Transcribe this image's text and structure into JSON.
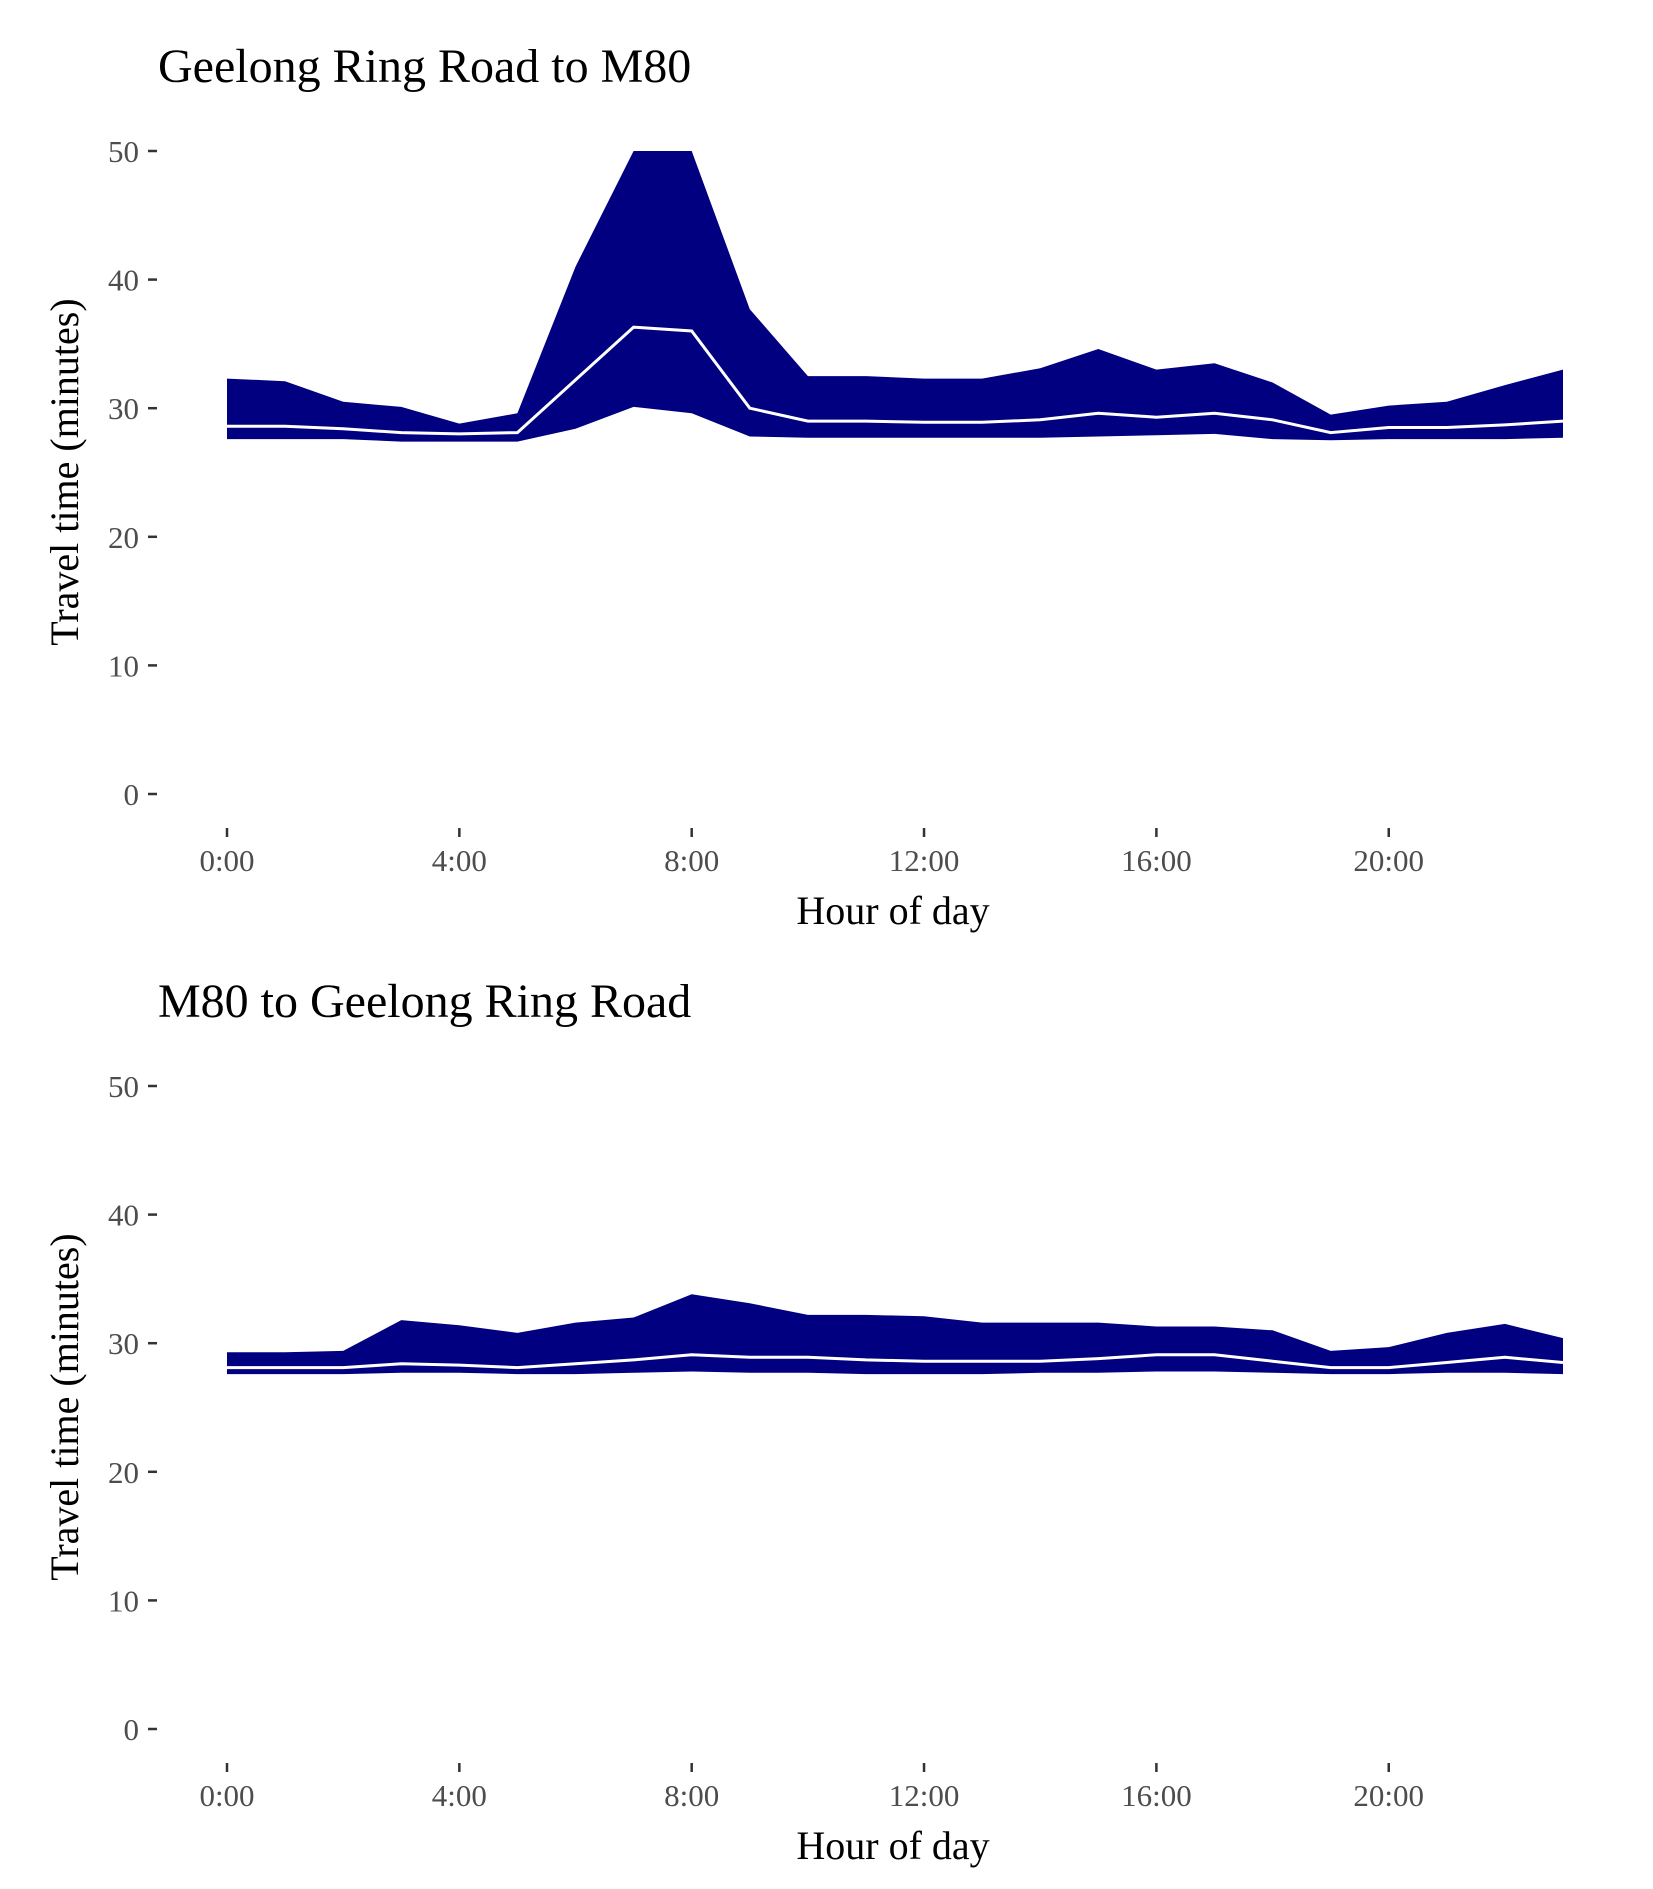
{
  "chart_data": [
    {
      "type": "area",
      "title": "Geelong Ring Road to M80",
      "xlabel": "Hour of day",
      "ylabel": "Travel time (minutes)",
      "ylim": [
        0,
        50
      ],
      "xlim": [
        0,
        23
      ],
      "x_ticks": [
        {
          "value": 0,
          "label": "0:00"
        },
        {
          "value": 4,
          "label": "4:00"
        },
        {
          "value": 8,
          "label": "8:00"
        },
        {
          "value": 12,
          "label": "12:00"
        },
        {
          "value": 16,
          "label": "16:00"
        },
        {
          "value": 20,
          "label": "20:00"
        }
      ],
      "y_ticks": [
        {
          "value": 0,
          "label": "0"
        },
        {
          "value": 10,
          "label": "10"
        },
        {
          "value": 20,
          "label": "20"
        },
        {
          "value": 30,
          "label": "30"
        },
        {
          "value": 40,
          "label": "40"
        },
        {
          "value": 50,
          "label": "50"
        }
      ],
      "x": [
        0,
        1,
        2,
        3,
        4,
        5,
        6,
        7,
        8,
        9,
        10,
        11,
        12,
        13,
        14,
        15,
        16,
        17,
        18,
        19,
        20,
        21,
        22,
        23
      ],
      "series": [
        {
          "role": "upper",
          "values": [
            32.3,
            32.1,
            30.5,
            30.1,
            28.8,
            29.6,
            41.0,
            50.0,
            50.0,
            37.7,
            32.5,
            32.5,
            32.3,
            32.3,
            33.1,
            34.6,
            33.0,
            33.5,
            32.0,
            29.5,
            30.2,
            30.5,
            31.8,
            33.0
          ]
        },
        {
          "role": "median",
          "values": [
            28.6,
            28.6,
            28.4,
            28.1,
            28.0,
            28.1,
            32.2,
            36.3,
            36.0,
            30.0,
            29.0,
            29.0,
            28.9,
            28.9,
            29.1,
            29.6,
            29.3,
            29.6,
            29.1,
            28.1,
            28.5,
            28.5,
            28.7,
            29.0
          ]
        },
        {
          "role": "lower",
          "values": [
            27.6,
            27.6,
            27.6,
            27.4,
            27.4,
            27.4,
            28.4,
            30.1,
            29.6,
            27.8,
            27.7,
            27.7,
            27.7,
            27.7,
            27.7,
            27.8,
            27.9,
            28.0,
            27.6,
            27.5,
            27.6,
            27.6,
            27.6,
            27.7
          ]
        }
      ],
      "colors": {
        "band": "#000080",
        "median": "#ffffff"
      }
    },
    {
      "type": "area",
      "title": "M80 to Geelong Ring Road",
      "xlabel": "Hour of day",
      "ylabel": "Travel time (minutes)",
      "ylim": [
        0,
        50
      ],
      "xlim": [
        0,
        23
      ],
      "x_ticks": [
        {
          "value": 0,
          "label": "0:00"
        },
        {
          "value": 4,
          "label": "4:00"
        },
        {
          "value": 8,
          "label": "8:00"
        },
        {
          "value": 12,
          "label": "12:00"
        },
        {
          "value": 16,
          "label": "16:00"
        },
        {
          "value": 20,
          "label": "20:00"
        }
      ],
      "y_ticks": [
        {
          "value": 0,
          "label": "0"
        },
        {
          "value": 10,
          "label": "10"
        },
        {
          "value": 20,
          "label": "20"
        },
        {
          "value": 30,
          "label": "30"
        },
        {
          "value": 40,
          "label": "40"
        },
        {
          "value": 50,
          "label": "50"
        }
      ],
      "x": [
        0,
        1,
        2,
        3,
        4,
        5,
        6,
        7,
        8,
        9,
        10,
        11,
        12,
        13,
        14,
        15,
        16,
        17,
        18,
        19,
        20,
        21,
        22,
        23
      ],
      "series": [
        {
          "role": "upper",
          "values": [
            29.3,
            29.3,
            29.4,
            31.8,
            31.4,
            30.8,
            31.6,
            32.0,
            33.8,
            33.1,
            32.2,
            32.2,
            32.1,
            31.6,
            31.6,
            31.6,
            31.3,
            31.3,
            31.0,
            29.4,
            29.7,
            30.8,
            31.5,
            30.4
          ]
        },
        {
          "role": "median",
          "values": [
            28.1,
            28.1,
            28.1,
            28.4,
            28.3,
            28.1,
            28.4,
            28.7,
            29.1,
            28.9,
            28.9,
            28.7,
            28.6,
            28.6,
            28.6,
            28.8,
            29.1,
            29.1,
            28.6,
            28.1,
            28.1,
            28.5,
            28.9,
            28.5
          ]
        },
        {
          "role": "lower",
          "values": [
            27.6,
            27.6,
            27.6,
            27.7,
            27.7,
            27.6,
            27.6,
            27.7,
            27.8,
            27.7,
            27.7,
            27.6,
            27.6,
            27.6,
            27.7,
            27.7,
            27.8,
            27.8,
            27.7,
            27.6,
            27.6,
            27.7,
            27.7,
            27.6
          ]
        }
      ],
      "colors": {
        "band": "#000080",
        "median": "#ffffff"
      }
    }
  ]
}
